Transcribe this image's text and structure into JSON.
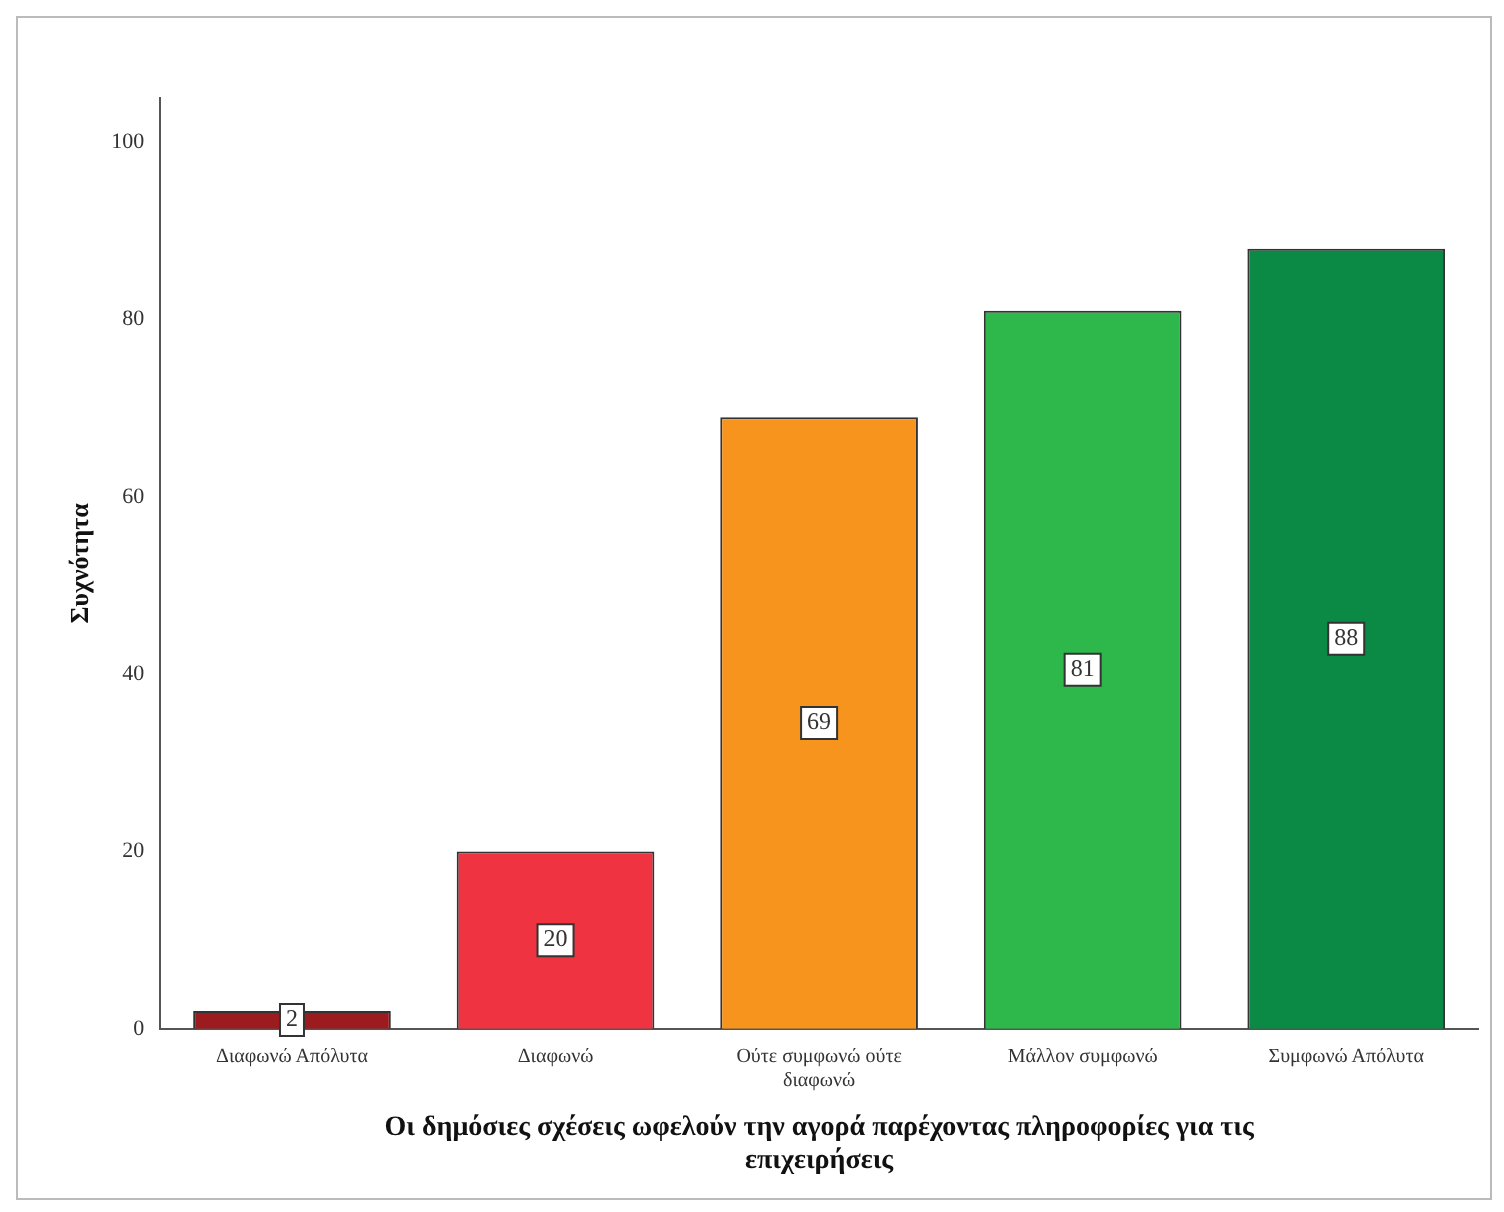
{
  "chart_data": {
    "type": "bar",
    "xlabel": "Οι δημόσιες σχέσεις ωφελούν την αγορά παρέχοντας πληροφορίες για τις επιχειρήσεις",
    "ylabel": "Συχνότητα",
    "categories": [
      "Διαφωνώ Απόλυτα",
      "Διαφωνώ",
      "Ούτε συμφωνώ ούτε διαφωνώ",
      "Μάλλον συμφωνώ",
      "Συμφωνώ Απόλυτα"
    ],
    "values": [
      2,
      20,
      69,
      81,
      88
    ],
    "colors": [
      "#9b1b1f",
      "#ef3340",
      "#f7941d",
      "#2eb84b",
      "#0b8a45"
    ],
    "ylim": [
      0,
      105
    ],
    "yticks": [
      0,
      20,
      40,
      60,
      80,
      100
    ],
    "grid": false,
    "legend": false,
    "data_labels": true
  }
}
